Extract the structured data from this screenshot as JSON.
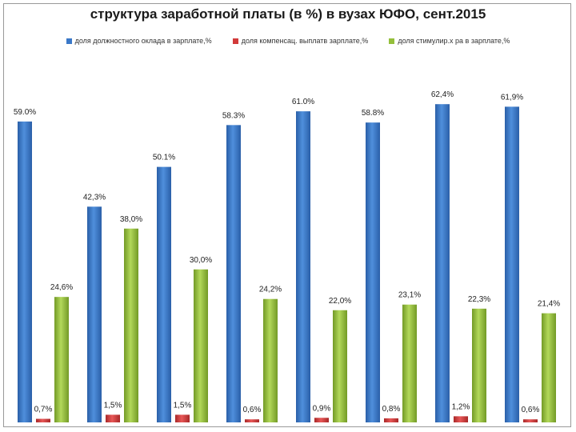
{
  "chart_data": {
    "type": "bar",
    "title": "структура заработной платы  (в %) в вузах ЮФО, сент.2015",
    "categories": [
      "",
      "",
      "",
      "",
      "",
      "",
      "",
      ""
    ],
    "series": [
      {
        "name": "доля должностного оклада в зарплате,%",
        "color": "#3a78c8",
        "values": [
          59.0,
          42.3,
          50.1,
          58.3,
          61.0,
          58.8,
          62.4,
          61.9
        ],
        "labels": [
          "59.0%",
          "42,3%",
          "50.1%",
          "58.3%",
          "61.0%",
          "58.8%",
          "62,4%",
          "61,9%"
        ]
      },
      {
        "name": "доля компенсац. выплатв зарплате,%",
        "color": "#d23a3a",
        "values": [
          0.7,
          1.5,
          1.5,
          0.6,
          0.9,
          0.8,
          1.2,
          0.6
        ],
        "labels": [
          "0,7%",
          "1,5%",
          "1,5%",
          "0,6%",
          "0,9%",
          "0,8%",
          "1,2%",
          "0,6%"
        ]
      },
      {
        "name": "доля стимулир.х ра в зарплате,%",
        "color": "#94bf3b",
        "values": [
          24.6,
          38.0,
          30.0,
          24.2,
          22.0,
          23.1,
          22.3,
          21.4
        ],
        "labels": [
          "24,6%",
          "38,0%",
          "30,0%",
          "24,2%",
          "22,0%",
          "23,1%",
          "22,3%",
          "21,4%"
        ]
      }
    ],
    "ylim": [
      0,
      64
    ],
    "grid": false,
    "legend_position": "top"
  }
}
